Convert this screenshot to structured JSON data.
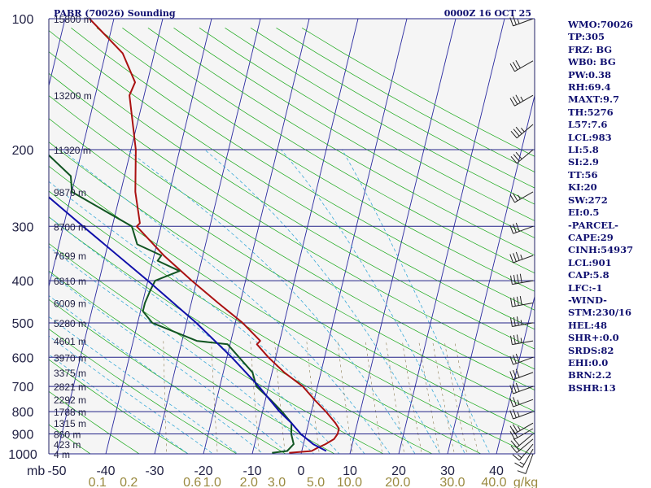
{
  "title": {
    "left": "PABR (70026) Sounding",
    "right": "0000Z 16 OCT 25"
  },
  "chart_data": {
    "type": "line",
    "diagram": "skew-T log-p",
    "ylabel": "mb",
    "ylim": [
      1000,
      100
    ],
    "xlim": [
      -50,
      50
    ],
    "y_scale": "log",
    "pressure_ticks": [
      {
        "p": 100,
        "label": "100"
      },
      {
        "p": 200,
        "label": "200"
      },
      {
        "p": 300,
        "label": "300"
      },
      {
        "p": 400,
        "label": "400"
      },
      {
        "p": 500,
        "label": "500"
      },
      {
        "p": 600,
        "label": "600"
      },
      {
        "p": 700,
        "label": "700"
      },
      {
        "p": 800,
        "label": "800"
      },
      {
        "p": 900,
        "label": "900"
      },
      {
        "p": 1000,
        "label": "1000"
      }
    ],
    "temperature_ticks": [
      {
        "t": -50,
        "label": "-50"
      },
      {
        "t": -40,
        "label": "-40"
      },
      {
        "t": -30,
        "label": "-30"
      },
      {
        "t": -20,
        "label": "-20"
      },
      {
        "t": -10,
        "label": "-10"
      },
      {
        "t": 0,
        "label": "0"
      },
      {
        "t": 10,
        "label": "10"
      },
      {
        "t": 20,
        "label": "20"
      },
      {
        "t": 30,
        "label": "30"
      },
      {
        "t": 40,
        "label": "40"
      }
    ],
    "mixing_ratio_ticks": [
      {
        "t": -41.7,
        "label": "0.1"
      },
      {
        "t": -35.3,
        "label": "0.2"
      },
      {
        "t": -22.3,
        "label": "0.6"
      },
      {
        "t": -18.2,
        "label": "1.0"
      },
      {
        "t": -10.7,
        "label": "2.0"
      },
      {
        "t": -5.0,
        "label": "3.0"
      },
      {
        "t": 3.0,
        "label": "5.0"
      },
      {
        "t": 9.9,
        "label": "10.0"
      },
      {
        "t": 19.8,
        "label": "20.0"
      },
      {
        "t": 31.0,
        "label": "30.0"
      },
      {
        "t": 39.5,
        "label": "40.0"
      },
      {
        "t": 46.0,
        "label": "g/kg"
      }
    ],
    "height_labels": [
      {
        "p": 100,
        "label": "15800 m"
      },
      {
        "p": 150,
        "label": "13200 m"
      },
      {
        "p": 200,
        "label": "11320 m"
      },
      {
        "p": 250,
        "label": "9870 m"
      },
      {
        "p": 300,
        "label": "8700 m"
      },
      {
        "p": 350,
        "label": "7699 m"
      },
      {
        "p": 400,
        "label": "6810 m"
      },
      {
        "p": 450,
        "label": "6009 m"
      },
      {
        "p": 500,
        "label": "5280 m"
      },
      {
        "p": 550,
        "label": "4601 m"
      },
      {
        "p": 600,
        "label": "3970 m"
      },
      {
        "p": 650,
        "label": "3375 m"
      },
      {
        "p": 700,
        "label": "2821 m"
      },
      {
        "p": 750,
        "label": "2292 m"
      },
      {
        "p": 800,
        "label": "1788 m"
      },
      {
        "p": 850,
        "label": "1315 m"
      },
      {
        "p": 900,
        "label": "860 m"
      },
      {
        "p": 950,
        "label": "423 m"
      },
      {
        "p": 1000,
        "label": "4 m"
      }
    ],
    "series": [
      {
        "name": "temperature",
        "color": "#aa1111",
        "points": [
          {
            "p": 995,
            "t": -2.5
          },
          {
            "p": 985,
            "t": 2.0
          },
          {
            "p": 970,
            "t": 3.0
          },
          {
            "p": 950,
            "t": 4.5
          },
          {
            "p": 925,
            "t": 6.0
          },
          {
            "p": 900,
            "t": 6.5
          },
          {
            "p": 875,
            "t": 6.5
          },
          {
            "p": 850,
            "t": 5.5
          },
          {
            "p": 800,
            "t": 3.0
          },
          {
            "p": 750,
            "t": 0.0
          },
          {
            "p": 700,
            "t": -3.0
          },
          {
            "p": 650,
            "t": -7.5
          },
          {
            "p": 600,
            "t": -11.5
          },
          {
            "p": 560,
            "t": -14.5
          },
          {
            "p": 550,
            "t": -14.0
          },
          {
            "p": 500,
            "t": -18.5
          },
          {
            "p": 450,
            "t": -24.5
          },
          {
            "p": 400,
            "t": -31.0
          },
          {
            "p": 350,
            "t": -38.0
          },
          {
            "p": 300,
            "t": -45.0
          },
          {
            "p": 295,
            "t": -44.5
          },
          {
            "p": 250,
            "t": -47.0
          },
          {
            "p": 200,
            "t": -49.0
          },
          {
            "p": 150,
            "t": -53.0
          },
          {
            "p": 140,
            "t": -52.5
          },
          {
            "p": 120,
            "t": -56.5
          },
          {
            "p": 100,
            "t": -65.0
          }
        ]
      },
      {
        "name": "dewpoint",
        "color": "#115522",
        "points": [
          {
            "p": 995,
            "t": -6.0
          },
          {
            "p": 985,
            "t": -3.0
          },
          {
            "p": 950,
            "t": -2.0
          },
          {
            "p": 900,
            "t": -3.0
          },
          {
            "p": 850,
            "t": -3.5
          },
          {
            "p": 800,
            "t": -6.0
          },
          {
            "p": 750,
            "t": -9.0
          },
          {
            "p": 700,
            "t": -12.5
          },
          {
            "p": 650,
            "t": -14.0
          },
          {
            "p": 600,
            "t": -17.5
          },
          {
            "p": 560,
            "t": -20.5
          },
          {
            "p": 550,
            "t": -27.0
          },
          {
            "p": 500,
            "t": -37.0
          },
          {
            "p": 470,
            "t": -39.5
          },
          {
            "p": 450,
            "t": -39.5
          },
          {
            "p": 420,
            "t": -39.0
          },
          {
            "p": 400,
            "t": -38.5
          },
          {
            "p": 380,
            "t": -34.0
          },
          {
            "p": 360,
            "t": -39.0
          },
          {
            "p": 350,
            "t": -38.5
          },
          {
            "p": 330,
            "t": -44.0
          },
          {
            "p": 300,
            "t": -46.0
          },
          {
            "p": 250,
            "t": -60.0
          },
          {
            "p": 230,
            "t": -61.0
          },
          {
            "p": 200,
            "t": -68.0
          },
          {
            "p": 150,
            "t": -76.0
          },
          {
            "p": 120,
            "t": -83.0
          },
          {
            "p": 100,
            "t": -86.0
          }
        ]
      },
      {
        "name": "parcel",
        "color": "#1010aa",
        "points": [
          {
            "p": 985,
            "t": 5.0
          },
          {
            "p": 950,
            "t": 2.0
          },
          {
            "p": 901,
            "t": -1.0
          },
          {
            "p": 850,
            "t": -3.5
          },
          {
            "p": 800,
            "t": -6.5
          },
          {
            "p": 700,
            "t": -12.0
          },
          {
            "p": 600,
            "t": -19.0
          },
          {
            "p": 500,
            "t": -28.0
          },
          {
            "p": 400,
            "t": -40.0
          },
          {
            "p": 300,
            "t": -56.0
          },
          {
            "p": 250,
            "t": -66.0
          },
          {
            "p": 200,
            "t": -77.0
          },
          {
            "p": 150,
            "t": -90.0
          },
          {
            "p": 125,
            "t": -99.0
          }
        ]
      }
    ],
    "winds": [
      {
        "p": 1000,
        "dir": 200,
        "spd": 10
      },
      {
        "p": 975,
        "dir": 210,
        "spd": 15
      },
      {
        "p": 950,
        "dir": 220,
        "spd": 15
      },
      {
        "p": 925,
        "dir": 230,
        "spd": 20
      },
      {
        "p": 900,
        "dir": 230,
        "spd": 20
      },
      {
        "p": 875,
        "dir": 240,
        "spd": 20
      },
      {
        "p": 850,
        "dir": 240,
        "spd": 25
      },
      {
        "p": 800,
        "dir": 250,
        "spd": 25
      },
      {
        "p": 750,
        "dir": 250,
        "spd": 25
      },
      {
        "p": 700,
        "dir": 250,
        "spd": 30
      },
      {
        "p": 650,
        "dir": 250,
        "spd": 30
      },
      {
        "p": 600,
        "dir": 250,
        "spd": 30
      },
      {
        "p": 550,
        "dir": 260,
        "spd": 35
      },
      {
        "p": 500,
        "dir": 260,
        "spd": 35
      },
      {
        "p": 450,
        "dir": 260,
        "spd": 40
      },
      {
        "p": 400,
        "dir": 260,
        "spd": 40
      },
      {
        "p": 350,
        "dir": 250,
        "spd": 35
      },
      {
        "p": 300,
        "dir": 250,
        "spd": 30
      },
      {
        "p": 250,
        "dir": 240,
        "spd": 25
      },
      {
        "p": 200,
        "dir": 230,
        "spd": 30
      },
      {
        "p": 175,
        "dir": 230,
        "spd": 35
      },
      {
        "p": 150,
        "dir": 240,
        "spd": 35
      },
      {
        "p": 125,
        "dir": 240,
        "spd": 30
      },
      {
        "p": 100,
        "dir": 250,
        "spd": 25
      }
    ]
  },
  "indices": [
    "WMO:70026",
    "TP:305",
    "FRZ: BG",
    "WB0: BG",
    "PW:0.38",
    "RH:69.4",
    "MAXT:9.7",
    "TH:5276",
    "L57:7.6",
    "LCL:983",
    "LI:5.8",
    "SI:2.9",
    "TT:56",
    "KI:20",
    "SW:272",
    "EI:0.5",
    "-PARCEL-",
    "CAPE:29",
    "CINH:54937",
    "LCL:901",
    "CAP:5.8",
    "LFC:-1",
    "-WIND-",
    "STM:230/16",
    "HEL:48",
    "SHR+:0.0",
    "SRDS:82",
    "EHI:0.0",
    "BRN:2.2",
    "BSHR:13"
  ]
}
